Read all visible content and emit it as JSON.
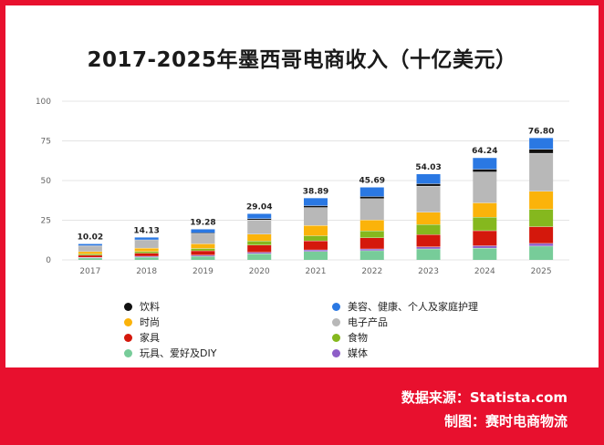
{
  "chart_data": {
    "type": "bar",
    "stacked": true,
    "title": "2017-2025年墨西哥电商收入（十亿美元）",
    "categories": [
      "2017",
      "2018",
      "2019",
      "2020",
      "2021",
      "2022",
      "2023",
      "2024",
      "2025"
    ],
    "totals": [
      10.02,
      14.13,
      19.28,
      29.04,
      38.89,
      45.69,
      54.03,
      64.24,
      76.8
    ],
    "total_labels": [
      "10.02",
      "14.13",
      "19.28",
      "29.04",
      "38.89",
      "45.69",
      "54.03",
      "64.24",
      "76.80"
    ],
    "ylim": [
      0,
      100
    ],
    "yticks": [
      0,
      25,
      50,
      75,
      100
    ],
    "grid": true,
    "series": [
      {
        "name": "玩具、爱好及DIY",
        "color": "#77cc99",
        "values": [
          1.3,
          1.8,
          2.4,
          4.0,
          5.4,
          5.9,
          7.0,
          7.5,
          8.8
        ]
      },
      {
        "name": "媒体",
        "color": "#8e5ec8",
        "values": [
          0.4,
          0.6,
          0.7,
          0.9,
          1.0,
          1.1,
          1.3,
          1.5,
          1.7
        ]
      },
      {
        "name": "家具",
        "color": "#d4180c",
        "values": [
          1.3,
          1.9,
          2.7,
          4.5,
          5.7,
          7.0,
          7.7,
          9.5,
          10.5
        ]
      },
      {
        "name": "食物",
        "color": "#85b81e",
        "values": [
          0.8,
          1.1,
          1.5,
          2.6,
          3.2,
          4.4,
          6.4,
          8.5,
          11.0
        ]
      },
      {
        "name": "时尚",
        "color": "#fbb30a",
        "values": [
          1.5,
          2.1,
          2.9,
          4.3,
          6.5,
          6.8,
          7.7,
          9.0,
          11.3
        ]
      },
      {
        "name": "电子产品",
        "color": "#b8b8b8",
        "values": [
          3.5,
          4.9,
          6.4,
          9.0,
          11.3,
          13.5,
          16.5,
          19.5,
          24.0
        ]
      },
      {
        "name": "饮料",
        "color": "#111111",
        "values": [
          0.25,
          0.35,
          0.5,
          0.8,
          1.1,
          1.3,
          1.5,
          1.7,
          2.5
        ]
      },
      {
        "name": "美容、健康、个人及家庭护理",
        "color": "#2a78e3",
        "values": [
          0.97,
          1.38,
          2.18,
          2.94,
          4.69,
          5.69,
          5.93,
          7.04,
          7.0
        ]
      }
    ],
    "legend": {
      "placement": "bottom",
      "left_column": [
        "饮料",
        "时尚",
        "家具",
        "玩具、爱好及DIY"
      ],
      "right_column": [
        "美容、健康、个人及家庭护理",
        "电子产品",
        "食物",
        "媒体"
      ]
    }
  },
  "footer": {
    "source": "数据来源：Statista.com",
    "credit": "制图：赛时电商物流"
  }
}
